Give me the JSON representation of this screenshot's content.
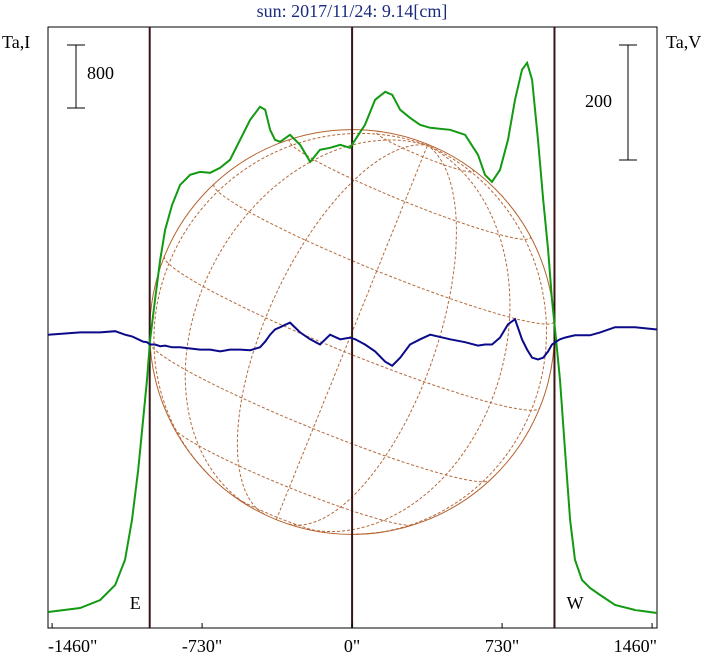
{
  "chart_data": {
    "type": "line",
    "title": "sun: 2017/11/24: 9.14[cm]",
    "y_label": "Ta,I",
    "y2_label": "Ta,V",
    "xlim": [
      -1480,
      1484
    ],
    "ylim": [
      0,
      7630
    ],
    "y2lim": [
      -500,
      545
    ],
    "xticks": [
      {
        "value": -1460,
        "label": "-1460\""
      },
      {
        "value": -730,
        "label": "-730\""
      },
      {
        "value": 0,
        "label": "0\""
      },
      {
        "value": 730,
        "label": "730\""
      },
      {
        "value": 1460,
        "label": "1460\""
      }
    ],
    "scale_bars": {
      "y": 800,
      "y2": 200
    },
    "disk": {
      "center": 0,
      "radius": 985
    },
    "limbs": [
      {
        "label": "E",
        "value": -985
      },
      {
        "label": "W",
        "value": 985
      }
    ],
    "x": [
      -1479,
      -1324,
      -1226,
      -1153,
      -1105,
      -1071,
      -1041,
      -1017,
      -998,
      -983,
      -959,
      -934,
      -910,
      -876,
      -837,
      -788,
      -740,
      -691,
      -642,
      -594,
      -545,
      -496,
      -448,
      -423,
      -399,
      -375,
      -350,
      -302,
      -253,
      -204,
      -156,
      -107,
      -58,
      -10,
      15,
      63,
      112,
      161,
      195,
      234,
      282,
      331,
      380,
      477,
      550,
      613,
      647,
      681,
      720,
      759,
      793,
      827,
      852,
      876,
      905,
      930,
      954,
      973,
      993,
      1012,
      1036,
      1061,
      1085,
      1119,
      1158,
      1207,
      1280,
      1377,
      1484
    ],
    "series": [
      {
        "color": "#129a12",
        "values": [
          203,
          254,
          356,
          546,
          864,
          1372,
          2007,
          2642,
          3150,
          3658,
          4166,
          4674,
          5055,
          5372,
          5626,
          5753,
          5791,
          5779,
          5842,
          5944,
          6198,
          6452,
          6617,
          6579,
          6325,
          6198,
          6172,
          6261,
          6134,
          5918,
          6071,
          6096,
          6134,
          6096,
          6198,
          6388,
          6706,
          6807,
          6769,
          6579,
          6477,
          6388,
          6350,
          6325,
          6261,
          6007,
          5753,
          5664,
          5817,
          6198,
          6706,
          7087,
          7176,
          6960,
          6198,
          5436,
          4801,
          4166,
          3658,
          3150,
          2261,
          1372,
          864,
          610,
          508,
          419,
          292,
          229,
          191
        ]
      },
      {
        "color": "#0a0a8a",
        "axis": "y2",
        "values": [
          10,
          14,
          14,
          16,
          10,
          7,
          2,
          -2,
          -3,
          -7,
          -7,
          -10,
          -9,
          -12,
          -12,
          -14,
          -16,
          -16,
          -19,
          -16,
          -16,
          -17,
          -12,
          -2,
          10,
          19,
          23,
          31,
          14,
          2,
          -7,
          10,
          2,
          5,
          2,
          -7,
          -19,
          -37,
          -44,
          -30,
          -7,
          2,
          10,
          2,
          -3,
          -9,
          -7,
          -7,
          5,
          28,
          37,
          2,
          -16,
          -30,
          -33,
          -30,
          -19,
          -7,
          -2,
          2,
          5,
          7,
          9,
          9,
          9,
          14,
          23,
          23,
          19
        ]
      }
    ]
  }
}
